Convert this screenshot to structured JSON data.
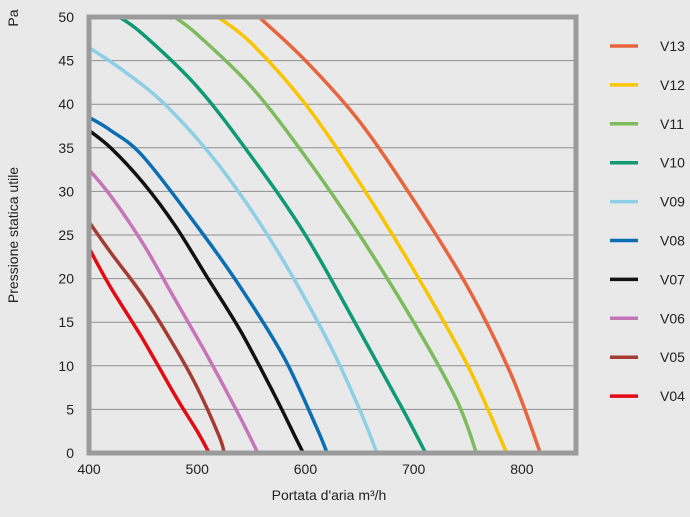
{
  "chart_data": {
    "type": "line",
    "title": "",
    "unit_label": "Pa",
    "xlabel": "Portata d'aria m³/h",
    "ylabel": "Pressione statica utile",
    "xlim": [
      400,
      850
    ],
    "ylim": [
      0,
      50
    ],
    "x_ticks": [
      400,
      500,
      600,
      700,
      800
    ],
    "y_ticks": [
      0,
      5,
      10,
      15,
      20,
      25,
      30,
      35,
      40,
      45,
      50
    ],
    "grid": true,
    "legend_position": "right",
    "series": [
      {
        "name": "V13",
        "color": "#e8643c",
        "x": [
          557,
          600,
          650,
          700,
          750,
          790,
          817
        ],
        "y": [
          50,
          45,
          38,
          29,
          19,
          9,
          0
        ]
      },
      {
        "name": "V12",
        "color": "#f8c500",
        "x": [
          519,
          550,
          600,
          650,
          700,
          750,
          786
        ],
        "y": [
          50,
          47,
          40,
          31,
          21,
          10,
          0
        ]
      },
      {
        "name": "V11",
        "color": "#7cbc5c",
        "x": [
          479,
          500,
          550,
          600,
          650,
          700,
          740,
          758
        ],
        "y": [
          50,
          48,
          42,
          34,
          25,
          15,
          6,
          0
        ]
      },
      {
        "name": "V10",
        "color": "#0f9a76",
        "x": [
          428,
          450,
          500,
          550,
          600,
          650,
          690,
          711
        ],
        "y": [
          50,
          48,
          42,
          34,
          25,
          14,
          5,
          0
        ]
      },
      {
        "name": "V09",
        "color": "#8ccfe6",
        "x": [
          400,
          430,
          470,
          520,
          570,
          620,
          650,
          666
        ],
        "y": [
          46.5,
          44,
          40,
          33,
          24,
          13,
          5,
          0
        ]
      },
      {
        "name": "V08",
        "color": "#0a6eb4",
        "x": [
          400,
          420,
          450,
          500,
          540,
          580,
          610,
          620
        ],
        "y": [
          38.5,
          37,
          34,
          26,
          19,
          11,
          3,
          0
        ]
      },
      {
        "name": "V07",
        "color": "#111111",
        "x": [
          400,
          420,
          450,
          480,
          510,
          540,
          570,
          590,
          598
        ],
        "y": [
          37,
          35,
          31,
          26,
          20,
          14,
          7,
          2,
          0
        ]
      },
      {
        "name": "V06",
        "color": "#c575b8",
        "x": [
          400,
          420,
          450,
          480,
          510,
          540,
          556
        ],
        "y": [
          32.5,
          29.5,
          24,
          17.5,
          11,
          4,
          0
        ]
      },
      {
        "name": "V05",
        "color": "#a53c33",
        "x": [
          400,
          420,
          450,
          480,
          500,
          520,
          525
        ],
        "y": [
          26.5,
          23,
          18,
          12,
          7.5,
          2,
          0
        ]
      },
      {
        "name": "V04",
        "color": "#e50914",
        "x": [
          400,
          420,
          450,
          480,
          500,
          511
        ],
        "y": [
          23.5,
          19,
          13,
          6.5,
          2.5,
          0
        ]
      }
    ]
  }
}
